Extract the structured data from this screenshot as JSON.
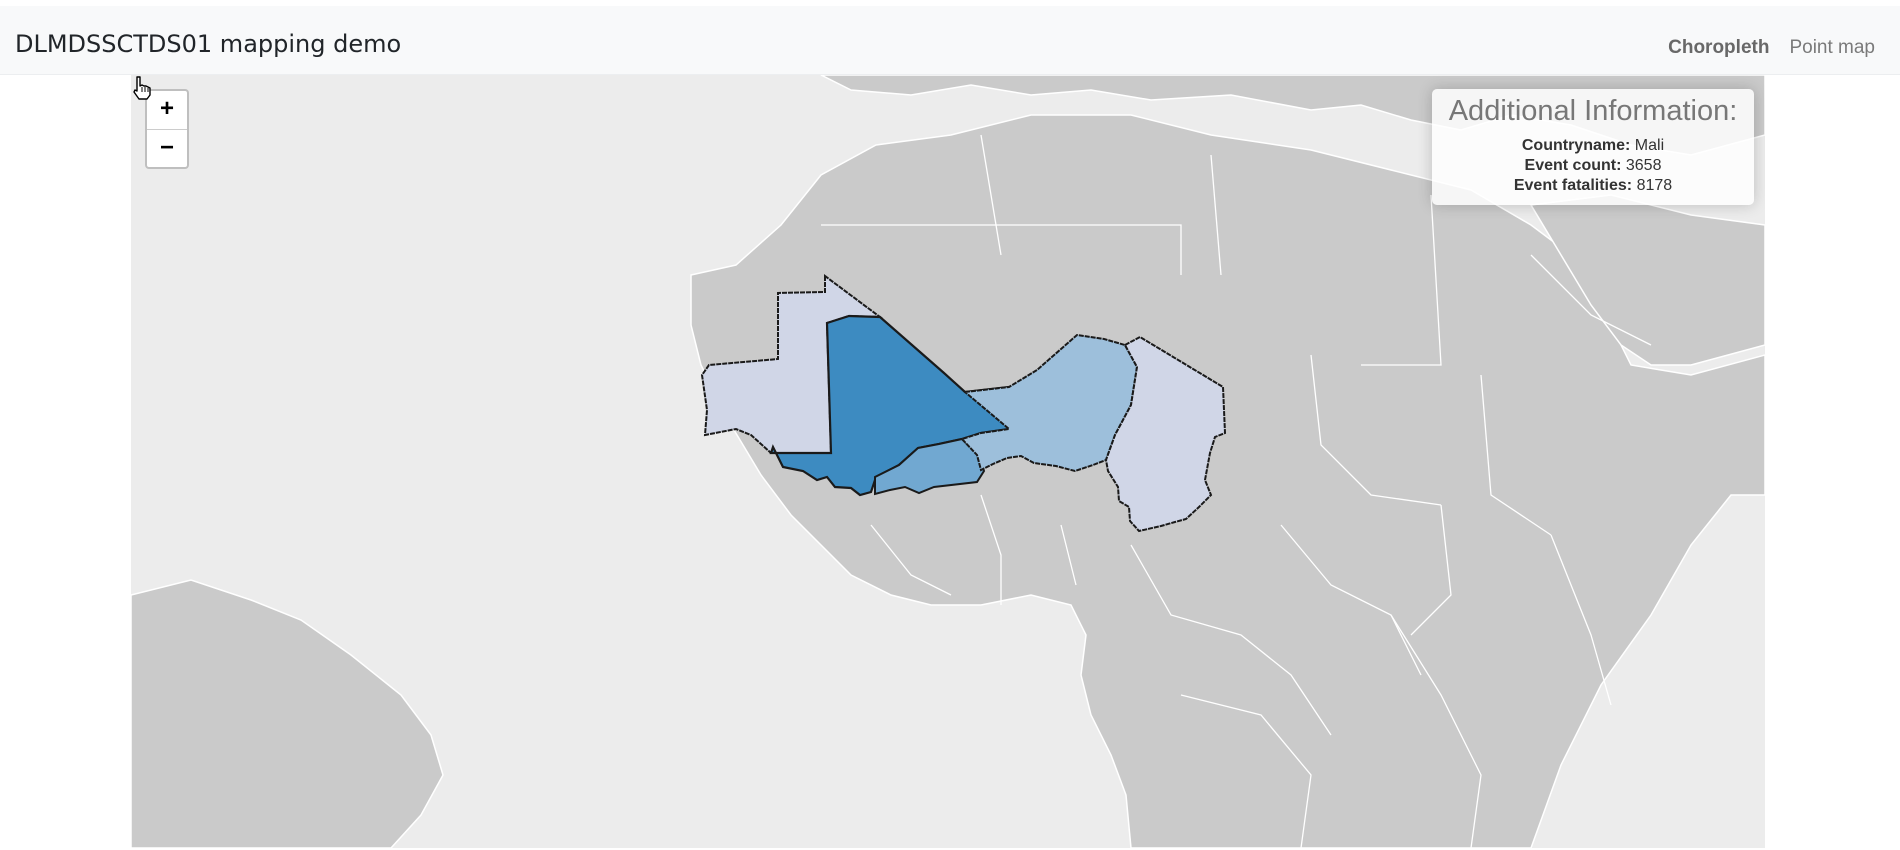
{
  "navbar": {
    "brand": "DLMDSSCTDS01 mapping demo",
    "links": [
      {
        "label": "Choropleth",
        "active": true
      },
      {
        "label": "Point map",
        "active": false
      }
    ]
  },
  "map": {
    "zoom_in": "+",
    "zoom_out": "−",
    "colors": {
      "ocean": "#ececec",
      "land": "#cacaca",
      "border": "#ffffff",
      "highlight_border": "#1a1a1a",
      "lightest": "#d0d6e7",
      "light": "#9dbfdb",
      "medium": "#71a8d1",
      "dark": "#3d8bc1"
    },
    "highlighted_countries": [
      {
        "name": "Mauritania",
        "shade": "lightest"
      },
      {
        "name": "Mali",
        "shade": "dark"
      },
      {
        "name": "Burkina Faso",
        "shade": "medium"
      },
      {
        "name": "Niger",
        "shade": "light"
      },
      {
        "name": "Chad",
        "shade": "lightest"
      }
    ]
  },
  "info": {
    "title": "Additional Information:",
    "country_label": "Countryname:",
    "country_value": "Mali",
    "count_label": "Event count:",
    "count_value": "3658",
    "fatal_label": "Event fatalities:",
    "fatal_value": "8178"
  }
}
